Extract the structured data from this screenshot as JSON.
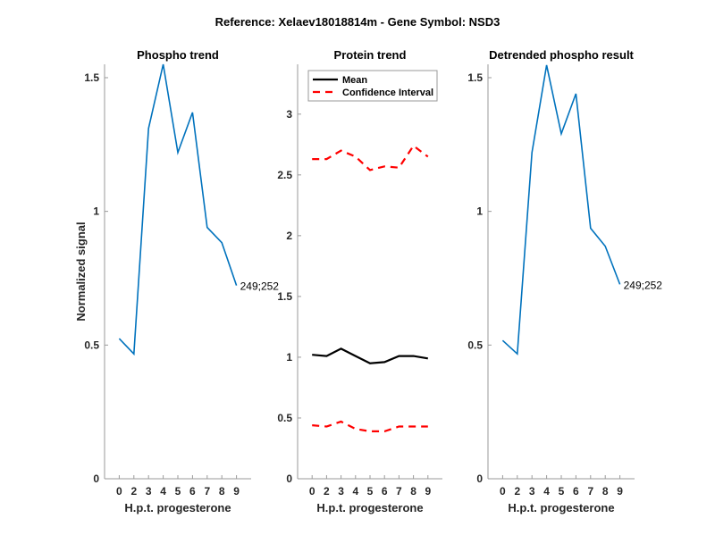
{
  "figure_title": "Reference:  Xelaev18018814m - Gene Symbol:  NSD3",
  "colors": {
    "phospho": "#0072BD",
    "mean": "#000000",
    "ci": "#FF0000",
    "axis": "#9a9a9a"
  },
  "chart_data": [
    {
      "type": "line",
      "id": "phospho",
      "title": "Phospho trend",
      "xlabel": "H.p.t. progesterone",
      "ylabel": "Normalized signal",
      "categories": [
        "0",
        "2",
        "3",
        "4",
        "5",
        "6",
        "7",
        "8",
        "9"
      ],
      "ylim": [
        0,
        1.55
      ],
      "yticks": [
        0,
        0.5,
        1,
        1.5
      ],
      "ytick_labels": [
        "0",
        "0.5",
        "1",
        "1.5"
      ],
      "grid": false,
      "series": [
        {
          "name": "249;252",
          "values": [
            0.524,
            0.467,
            1.31,
            1.55,
            1.22,
            1.37,
            0.94,
            0.883,
            0.723
          ]
        }
      ],
      "annotations": [
        {
          "text": "249;252",
          "at_category": "9"
        }
      ]
    },
    {
      "type": "line",
      "id": "protein",
      "title": "Protein trend",
      "xlabel": "H.p.t. progesterone",
      "ylabel": "",
      "categories": [
        "0",
        "2",
        "3",
        "4",
        "5",
        "6",
        "7",
        "8",
        "9"
      ],
      "ylim": [
        0,
        3.41
      ],
      "yticks": [
        0,
        0.5,
        1,
        1.5,
        2,
        2.5,
        3
      ],
      "ytick_labels": [
        "0",
        "0.5",
        "1",
        "1.5",
        "2",
        "2.5",
        "3"
      ],
      "grid": false,
      "legend": {
        "placement": "top-left",
        "entries": [
          "Mean",
          "Confidence Interval"
        ]
      },
      "series": [
        {
          "name": "Mean",
          "style": "solid",
          "values": [
            1.02,
            1.01,
            1.07,
            1.01,
            0.95,
            0.96,
            1.01,
            1.01,
            0.99
          ]
        },
        {
          "name": "Confidence Interval",
          "style": "dashed",
          "values": [
            2.63,
            2.63,
            2.7,
            2.65,
            2.54,
            2.57,
            2.56,
            2.74,
            2.65
          ]
        },
        {
          "name": "Confidence Interval (lower)",
          "style": "dashed",
          "values": [
            0.44,
            0.43,
            0.47,
            0.41,
            0.39,
            0.39,
            0.43,
            0.43,
            0.43
          ]
        }
      ]
    },
    {
      "type": "line",
      "id": "detrended",
      "title": "Detrended phospho result",
      "xlabel": "H.p.t. progesterone",
      "ylabel": "",
      "categories": [
        "0",
        "2",
        "3",
        "4",
        "5",
        "6",
        "7",
        "8",
        "9"
      ],
      "ylim": [
        0,
        1.55
      ],
      "yticks": [
        0,
        0.5,
        1,
        1.5
      ],
      "ytick_labels": [
        "0",
        "0.5",
        "1",
        "1.5"
      ],
      "grid": false,
      "series": [
        {
          "name": "249;252",
          "values": [
            0.517,
            0.467,
            1.22,
            1.547,
            1.29,
            1.44,
            0.937,
            0.87,
            0.727
          ]
        }
      ],
      "annotations": [
        {
          "text": "249;252",
          "at_category": "9"
        }
      ]
    }
  ]
}
